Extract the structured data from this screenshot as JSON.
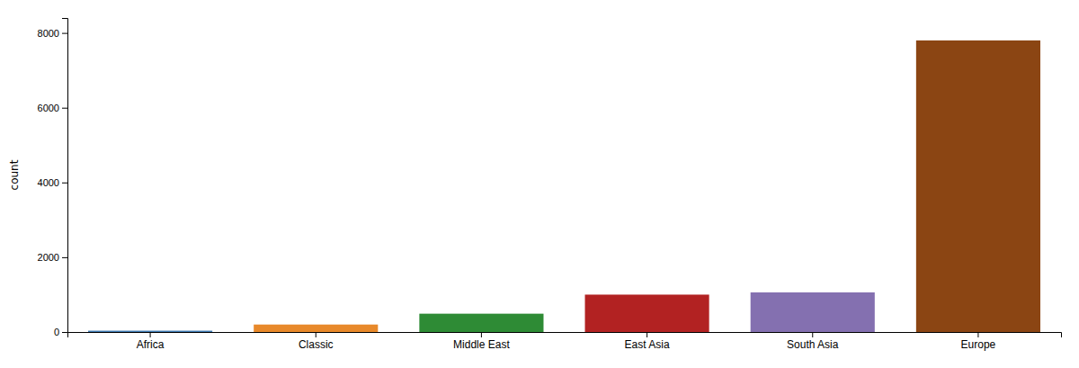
{
  "chart_data": {
    "type": "bar",
    "categories": [
      "Africa",
      "Classic",
      "Middle East",
      "East Asia",
      "South Asia",
      "Europe"
    ],
    "values": [
      35,
      200,
      490,
      1000,
      1060,
      7800
    ],
    "colors": [
      "#3c78b0",
      "#e8892a",
      "#2e8b35",
      "#b22222",
      "#8470b0",
      "#8b4513"
    ],
    "ylabel": "count",
    "ylim": [
      0,
      8400
    ],
    "yticks": [
      0,
      2000,
      4000,
      6000,
      8000
    ],
    "grid": false
  }
}
